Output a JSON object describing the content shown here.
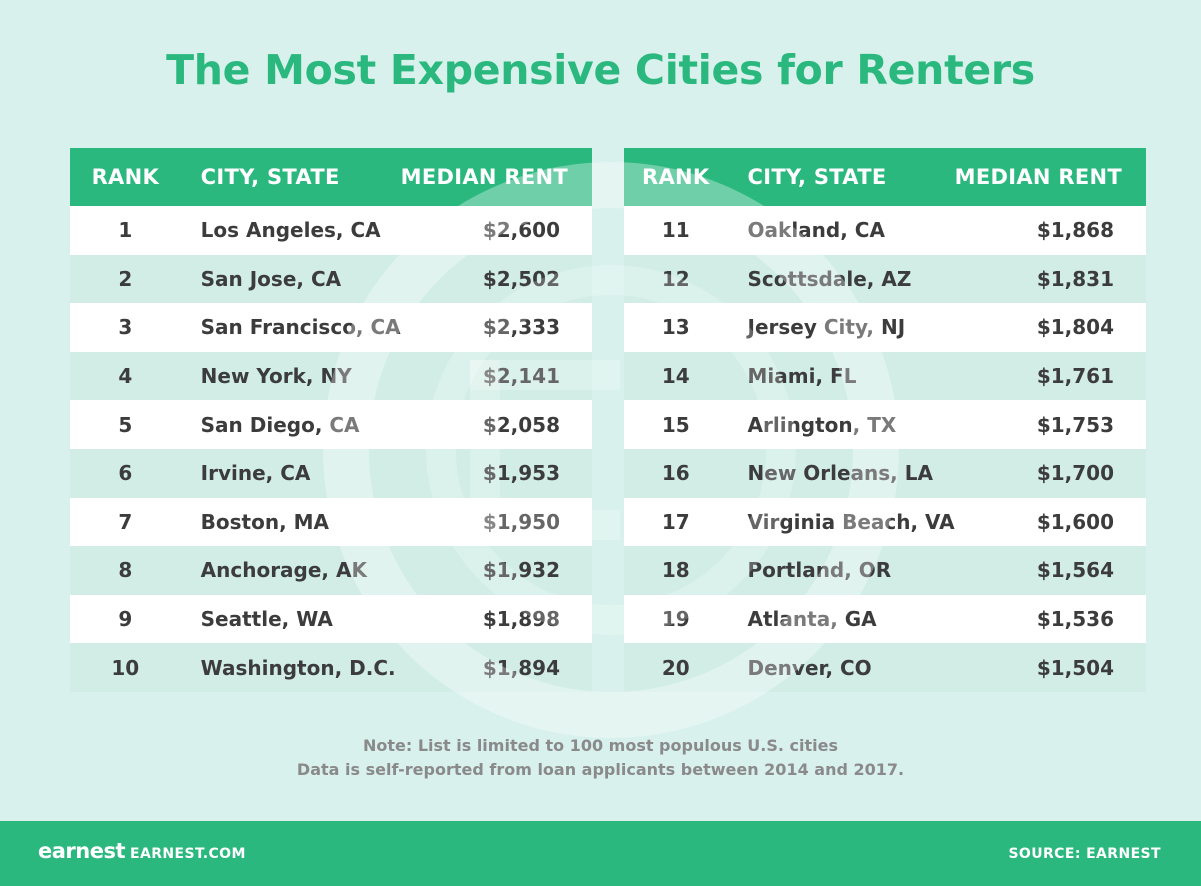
{
  "title": "The Most Expensive Cities for Renters",
  "columns": {
    "rank": "RANK",
    "city": "CITY, STATE",
    "rent": "MEDIAN RENT"
  },
  "chart_data": {
    "type": "table",
    "title": "The Most Expensive Cities for Renters",
    "columns": [
      "RANK",
      "CITY, STATE",
      "MEDIAN RENT"
    ],
    "rows": [
      {
        "rank": "1",
        "city": "Los Angeles, CA",
        "rent": "$2,600"
      },
      {
        "rank": "2",
        "city": "San Jose, CA",
        "rent": "$2,502"
      },
      {
        "rank": "3",
        "city": "San Francisco, CA",
        "rent": "$2,333"
      },
      {
        "rank": "4",
        "city": "New York, NY",
        "rent": "$2,141"
      },
      {
        "rank": "5",
        "city": "San Diego, CA",
        "rent": "$2,058"
      },
      {
        "rank": "6",
        "city": "Irvine, CA",
        "rent": "$1,953"
      },
      {
        "rank": "7",
        "city": "Boston, MA",
        "rent": "$1,950"
      },
      {
        "rank": "8",
        "city": "Anchorage, AK",
        "rent": "$1,932"
      },
      {
        "rank": "9",
        "city": "Seattle, WA",
        "rent": "$1,898"
      },
      {
        "rank": "10",
        "city": "Washington, D.C.",
        "rent": "$1,894"
      },
      {
        "rank": "11",
        "city": "Oakland, CA",
        "rent": "$1,868"
      },
      {
        "rank": "12",
        "city": "Scottsdale, AZ",
        "rent": "$1,831"
      },
      {
        "rank": "13",
        "city": "Jersey City, NJ",
        "rent": "$1,804"
      },
      {
        "rank": "14",
        "city": "Miami, FL",
        "rent": "$1,761"
      },
      {
        "rank": "15",
        "city": "Arlington, TX",
        "rent": "$1,753"
      },
      {
        "rank": "16",
        "city": "New Orleans, LA",
        "rent": "$1,700"
      },
      {
        "rank": "17",
        "city": "Virginia Beach, VA",
        "rent": "$1,600"
      },
      {
        "rank": "18",
        "city": "Portland, OR",
        "rent": "$1,564"
      },
      {
        "rank": "19",
        "city": "Atlanta, GA",
        "rent": "$1,536"
      },
      {
        "rank": "20",
        "city": "Denver, CO",
        "rent": "$1,504"
      }
    ]
  },
  "notes": [
    "Note: List is limited to 100 most populous U.S. cities",
    "Data is self-reported from loan applicants between 2014 and 2017."
  ],
  "footer": {
    "logo": "earnest",
    "site": "EARNEST.COM",
    "source": "SOURCE: EARNEST"
  },
  "colors": {
    "background": "#d8f1ec",
    "accent": "#2bb87f",
    "text": "#3c3c3c",
    "row_alt": "#d1ede6",
    "note": "#8a8a8a"
  }
}
